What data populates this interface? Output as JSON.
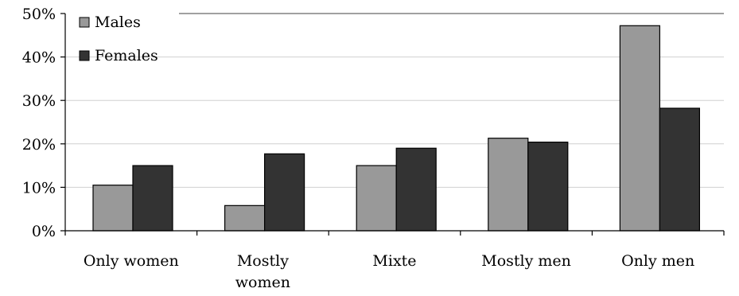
{
  "chart_data": {
    "type": "bar",
    "categories": [
      "Only women",
      "Mostly women",
      "Mixte",
      "Mostly men",
      "Only men"
    ],
    "category_label_lines": [
      [
        "Only women"
      ],
      [
        "Mostly",
        "women"
      ],
      [
        "Mixte"
      ],
      [
        "Mostly men"
      ],
      [
        "Only men"
      ]
    ],
    "series": [
      {
        "name": "Males",
        "values": [
          10.5,
          5.8,
          15.0,
          21.3,
          47.2
        ],
        "color": "#999999"
      },
      {
        "name": "Females",
        "values": [
          15.0,
          17.7,
          19.0,
          20.4,
          28.2
        ],
        "color": "#333333"
      }
    ],
    "ylim": [
      0,
      50
    ],
    "yticks": [
      0,
      10,
      20,
      30,
      40,
      50
    ],
    "ytick_labels": [
      "0%",
      "10%",
      "20%",
      "30%",
      "40%",
      "50%"
    ],
    "grid": true,
    "legend_position": "top-left",
    "xlabel": "",
    "ylabel": "",
    "title": ""
  }
}
